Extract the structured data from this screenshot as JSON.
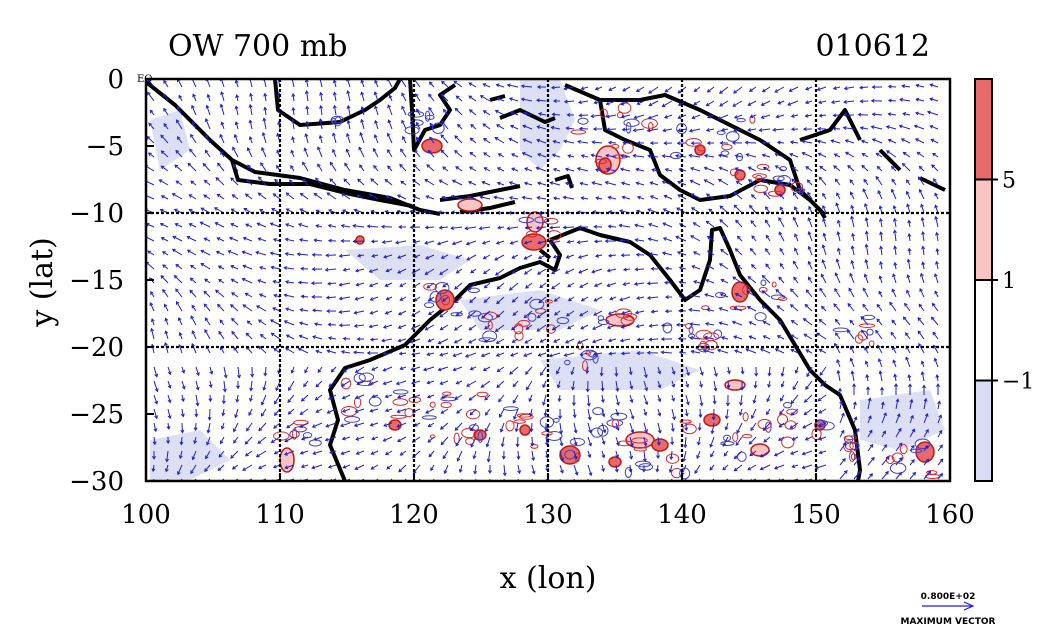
{
  "title_left": "OW 700 mb",
  "title_right": "010612",
  "map": {
    "x_label": "x (lon)",
    "y_label": "y (lat)",
    "x_ticks": [
      "100",
      "110",
      "120",
      "130",
      "140",
      "150",
      "160"
    ],
    "y_ticks": [
      "0",
      "−5",
      "−10",
      "−15",
      "−20",
      "−25",
      "−30"
    ],
    "x_values": [
      100,
      110,
      120,
      130,
      140,
      150,
      160
    ],
    "y_values": [
      0,
      -5,
      -10,
      -15,
      -20,
      -25,
      -30
    ],
    "lon_range": [
      100,
      160
    ],
    "lat_range": [
      -30,
      0
    ],
    "corner_mark": "EQ",
    "grid_lon_every": 10,
    "grid_lat_every": 10,
    "colors": {
      "coastline": "#000000",
      "vector": "#1f1fd6",
      "positive": "#e02828",
      "negative": "#4040d0"
    }
  },
  "colorbar": {
    "labels": [
      "5",
      "1",
      "−1"
    ],
    "label_values": [
      5,
      1,
      -1
    ],
    "bands": [
      {
        "color": "#e86a6a"
      },
      {
        "color": "#f8c4c4"
      },
      {
        "color": "#ffffff"
      },
      {
        "color": "#d8dcf4"
      }
    ]
  },
  "vector_legend": {
    "value": "0.800E+02",
    "label": "MAXIMUM VECTOR"
  }
}
